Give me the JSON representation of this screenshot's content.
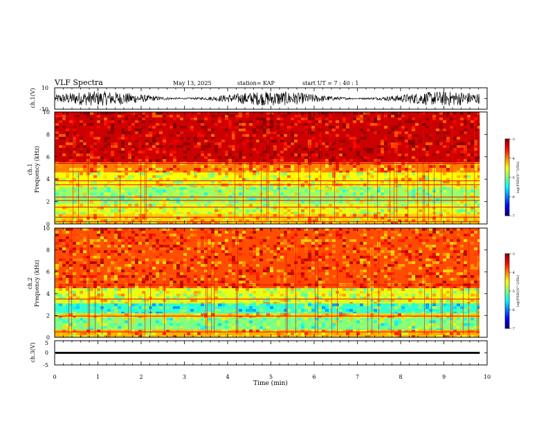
{
  "header": {
    "title": "VLF Spectra",
    "date": "May 13, 2025",
    "station": "station= KAP",
    "start_ut": "start UT =  7 : 40 : 1"
  },
  "chart_data": [
    {
      "type": "line",
      "name": "ch1-waveform",
      "ylabel": "ch.1(V)",
      "ylim": [
        -10,
        10
      ],
      "yticks": [
        10,
        -10
      ],
      "xlim": [
        0,
        10
      ],
      "x_end": 9.83,
      "baseline": 0,
      "amplitude_range": [
        -8,
        8
      ]
    },
    {
      "type": "heatmap",
      "name": "ch1-spectrogram",
      "ylabel": "ch.1 Frequency (kHz)",
      "ylim": [
        0,
        10
      ],
      "yticks": [
        0,
        2,
        4,
        6,
        8,
        10
      ],
      "xlim": [
        0,
        10
      ],
      "x_end": 9.83,
      "bands_khz": [
        {
          "from": 0,
          "to": 0.9,
          "level": -4.3
        },
        {
          "from": 0.9,
          "to": 1.8,
          "level": -4.6
        },
        {
          "from": 1.8,
          "to": 3.3,
          "level": -4.9
        },
        {
          "from": 3.3,
          "to": 4.6,
          "level": -4.5
        },
        {
          "from": 4.6,
          "to": 5.5,
          "level": -4.0
        },
        {
          "from": 5.5,
          "to": 10,
          "level": -3.3
        }
      ],
      "lines_khz": [
        0.2,
        0.6,
        1.5,
        2.1,
        2.4,
        3.5,
        3.85,
        5.4
      ],
      "colorbar": {
        "label": "log(PSD)(V^2/Hz)",
        "range": [
          -7,
          -3
        ],
        "ticks": [
          "-3",
          "-4",
          "-5",
          "-6",
          "-7"
        ]
      }
    },
    {
      "type": "heatmap",
      "name": "ch2-spectrogram",
      "ylabel": "ch.2 Frequency (kHz)",
      "ylim": [
        0,
        10
      ],
      "yticks": [
        0,
        2,
        4,
        6,
        8,
        10
      ],
      "xlim": [
        0,
        10
      ],
      "x_end": 9.83,
      "bands_khz": [
        {
          "from": 0,
          "to": 0.7,
          "level": -4.2
        },
        {
          "from": 0.7,
          "to": 1.8,
          "level": -5.0
        },
        {
          "from": 1.8,
          "to": 2.2,
          "level": -4.3
        },
        {
          "from": 2.2,
          "to": 3.1,
          "level": -5.3
        },
        {
          "from": 3.1,
          "to": 4.5,
          "level": -4.6
        },
        {
          "from": 4.5,
          "to": 10,
          "level": -3.8
        }
      ],
      "lines_khz": [
        0.5,
        1.95,
        3.5,
        4.8
      ],
      "colorbar": {
        "label": "log(PSD)(V^2/Hz)",
        "range": [
          -7,
          -3
        ],
        "ticks": [
          "-3",
          "-4",
          "-5",
          "-6",
          "-7"
        ]
      }
    },
    {
      "type": "line",
      "name": "ch3-waveform",
      "ylabel": "ch.3(V)",
      "ylim": [
        -5,
        5
      ],
      "yticks": [
        5,
        0,
        -5
      ],
      "xlim": [
        0,
        10
      ],
      "x_end": 9.83,
      "baseline": 0,
      "amplitude_range": [
        -0.4,
        0.4
      ]
    }
  ],
  "xaxis": {
    "label": "Time (min)",
    "ticks": [
      "0",
      "1",
      "2",
      "3",
      "4",
      "5",
      "6",
      "7",
      "8",
      "9",
      "10"
    ]
  },
  "colors": {
    "axis": "#000000",
    "background": "#ffffff"
  }
}
